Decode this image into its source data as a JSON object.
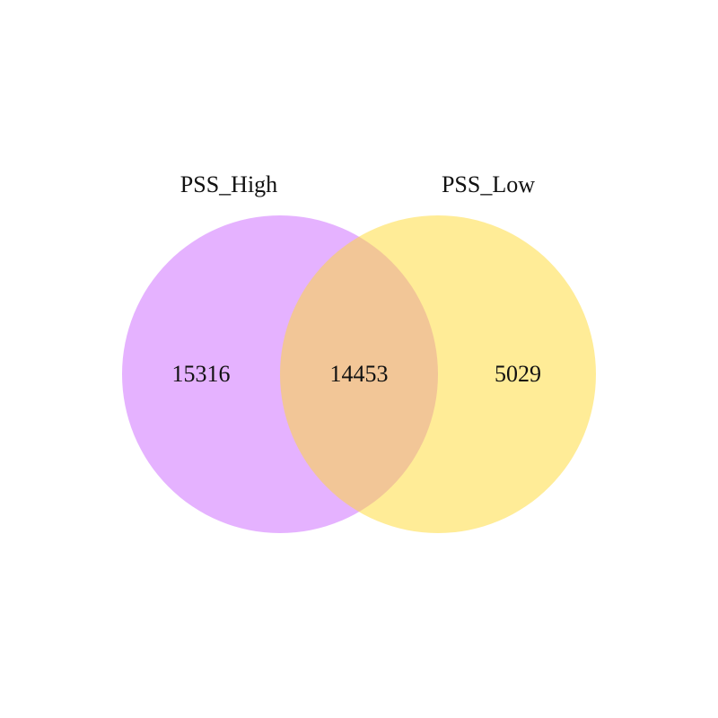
{
  "venn": {
    "sets": [
      {
        "name": "PSS_High",
        "color": "#cc66ff",
        "opacity": 0.5
      },
      {
        "name": "PSS_Low",
        "color": "#ffd92f",
        "opacity": 0.5
      }
    ],
    "regions": {
      "high_only": "15316",
      "both": "14453",
      "low_only": "5029"
    }
  }
}
